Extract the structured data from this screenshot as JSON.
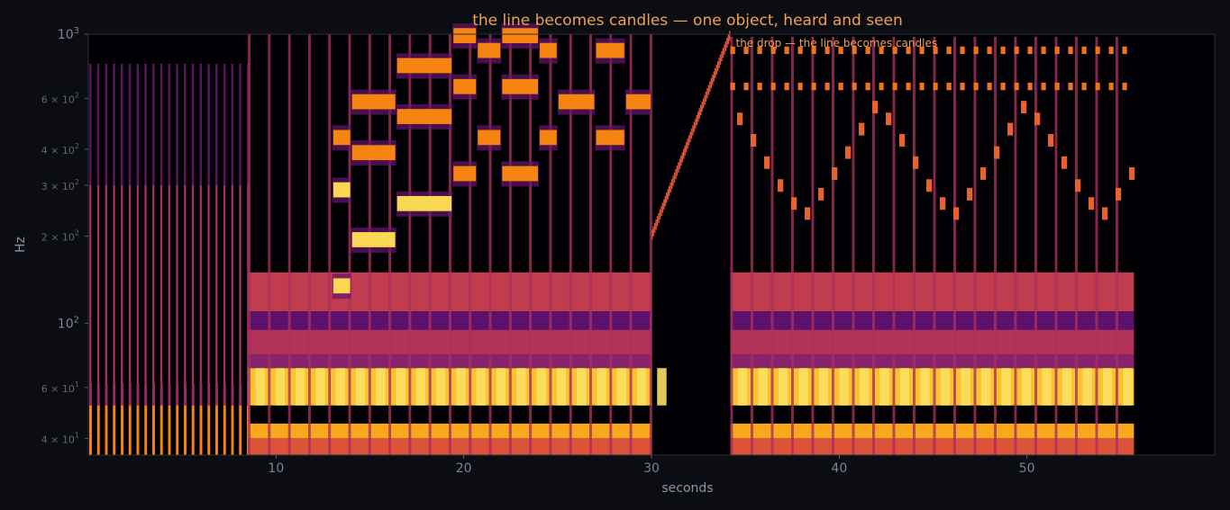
{
  "chart_data": {
    "type": "heatmap",
    "title": "the line becomes candles — one object, heard and seen",
    "xlabel": "seconds",
    "ylabel": "Hz",
    "xlim": [
      0,
      60
    ],
    "ylim": [
      35,
      1000
    ],
    "yscale": "log",
    "x_ticks": [
      {
        "value": 10,
        "label": "10"
      },
      {
        "value": 20,
        "label": "20"
      },
      {
        "value": 30,
        "label": "30"
      },
      {
        "value": 40,
        "label": "40"
      },
      {
        "value": 50,
        "label": "50"
      }
    ],
    "y_ticks": [
      {
        "value": 40,
        "base": "4 × 10",
        "exp": "1",
        "size": "small"
      },
      {
        "value": 60,
        "base": "6 × 10",
        "exp": "1",
        "size": "small"
      },
      {
        "value": 100,
        "base": "10",
        "exp": "2",
        "size": "large"
      },
      {
        "value": 200,
        "base": "2 × 10",
        "exp": "2",
        "size": "small"
      },
      {
        "value": 300,
        "base": "3 × 10",
        "exp": "2",
        "size": "small"
      },
      {
        "value": 400,
        "base": "4 × 10",
        "exp": "2",
        "size": "small"
      },
      {
        "value": 600,
        "base": "6 × 10",
        "exp": "2",
        "size": "small"
      },
      {
        "value": 1000,
        "base": "10",
        "exp": "3",
        "size": "large"
      }
    ],
    "annotation": {
      "text": "the drop — the line becomes candles",
      "x": 34.2,
      "y": 900
    },
    "colormap": "inferno",
    "sections": [
      {
        "name": "pulses",
        "start": 0,
        "end": 8.5,
        "pulse_interval": 0.42,
        "pulse_top_hz": 790
      },
      {
        "name": "groove",
        "start": 8.5,
        "end": 30,
        "bass_bands_hz": [
          [
            40,
            45
          ],
          [
            52,
            70
          ],
          [
            78,
            95
          ],
          [
            110,
            150
          ]
        ],
        "beat_interval": 1.07
      },
      {
        "name": "sweep",
        "start": 30,
        "end": 34.2,
        "from_hz": 200,
        "to_hz": 1000
      },
      {
        "name": "candles",
        "start": 34.2,
        "end": 55.7,
        "candle_interval": 0.36
      }
    ],
    "melody_notes": [
      {
        "t0": 13.0,
        "t1": 14.0,
        "hz": 135
      },
      {
        "t0": 13.0,
        "t1": 14.0,
        "hz": 290
      },
      {
        "t0": 13.0,
        "t1": 14.0,
        "hz": 440
      },
      {
        "t0": 14.0,
        "t1": 16.4,
        "hz": 195
      },
      {
        "t0": 14.0,
        "t1": 16.4,
        "hz": 390
      },
      {
        "t0": 14.0,
        "t1": 16.4,
        "hz": 585
      },
      {
        "t0": 16.4,
        "t1": 19.4,
        "hz": 260
      },
      {
        "t0": 16.4,
        "t1": 19.4,
        "hz": 520
      },
      {
        "t0": 16.4,
        "t1": 19.4,
        "hz": 780
      },
      {
        "t0": 19.4,
        "t1": 20.7,
        "hz": 330
      },
      {
        "t0": 19.4,
        "t1": 20.7,
        "hz": 660
      },
      {
        "t0": 19.4,
        "t1": 20.7,
        "hz": 990
      },
      {
        "t0": 20.7,
        "t1": 22.0,
        "hz": 440
      },
      {
        "t0": 20.7,
        "t1": 22.0,
        "hz": 880
      },
      {
        "t0": 22.0,
        "t1": 24.0,
        "hz": 330
      },
      {
        "t0": 22.0,
        "t1": 24.0,
        "hz": 660
      },
      {
        "t0": 22.0,
        "t1": 24.0,
        "hz": 990
      },
      {
        "t0": 24.0,
        "t1": 25.0,
        "hz": 440
      },
      {
        "t0": 24.0,
        "t1": 25.0,
        "hz": 880
      },
      {
        "t0": 25.0,
        "t1": 27.0,
        "hz": 585
      },
      {
        "t0": 27.0,
        "t1": 28.6,
        "hz": 440
      },
      {
        "t0": 27.0,
        "t1": 28.6,
        "hz": 880
      },
      {
        "t0": 28.6,
        "t1": 30.0,
        "hz": 585
      }
    ],
    "candle_lines_hz": [
      880,
      660
    ],
    "candle_cascade_hz": [
      560,
      510,
      470,
      430,
      390,
      360,
      330,
      300,
      280,
      260,
      240
    ]
  }
}
